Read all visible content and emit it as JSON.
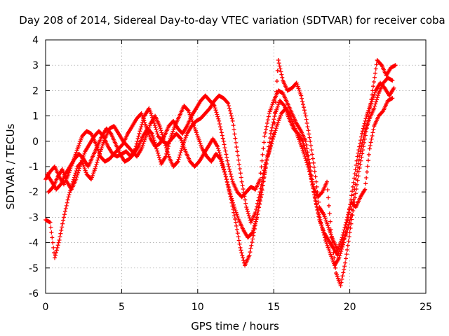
{
  "chart_data": {
    "type": "scatter",
    "title": "Day 208 of 2014, Sidereal Day-to-day VTEC variation (SDTVAR) for receiver coba",
    "xlabel": "GPS time / hours",
    "ylabel": "SDTVAR / TECUs",
    "xlim": [
      0,
      25
    ],
    "ylim": [
      -6,
      4
    ],
    "x_ticks": [
      "0",
      "5",
      "10",
      "15",
      "20",
      "25"
    ],
    "y_ticks": [
      "-6",
      "-5",
      "-4",
      "-3",
      "-2",
      "-1",
      "0",
      "1",
      "2",
      "3",
      "4"
    ],
    "grid": true,
    "marker": "+",
    "series_color": "#ff0000",
    "series": [
      {
        "points": [
          [
            0.0,
            -1.5
          ],
          [
            0.3,
            -1.2
          ],
          [
            0.6,
            -1.0
          ],
          [
            0.9,
            -1.4
          ],
          [
            1.2,
            -1.7
          ],
          [
            1.5,
            -1.3
          ],
          [
            1.8,
            -0.8
          ],
          [
            2.1,
            -0.3
          ],
          [
            2.4,
            0.2
          ],
          [
            2.7,
            0.4
          ],
          [
            3.0,
            0.3
          ],
          [
            3.3,
            -0.1
          ],
          [
            3.6,
            -0.6
          ],
          [
            3.9,
            -0.8
          ],
          [
            4.2,
            -0.7
          ],
          [
            4.5,
            -0.5
          ],
          [
            4.8,
            -0.3
          ],
          [
            5.1,
            -0.1
          ],
          [
            5.4,
            0.3
          ],
          [
            5.7,
            0.6
          ],
          [
            6.0,
            0.9
          ],
          [
            6.3,
            1.1
          ],
          [
            6.6,
            0.6
          ],
          [
            6.9,
            0.1
          ],
          [
            7.2,
            -0.2
          ],
          [
            7.5,
            -0.1
          ],
          [
            7.8,
            0.2
          ],
          [
            8.1,
            0.6
          ],
          [
            8.4,
            0.8
          ],
          [
            8.7,
            0.5
          ],
          [
            9.0,
            0.3
          ],
          [
            9.3,
            0.6
          ],
          [
            9.6,
            1.0
          ],
          [
            9.9,
            1.3
          ],
          [
            10.2,
            1.6
          ],
          [
            10.5,
            1.8
          ],
          [
            10.8,
            1.6
          ],
          [
            11.1,
            1.4
          ],
          [
            11.4,
            0.8
          ],
          [
            11.7,
            0.0
          ],
          [
            12.0,
            -0.9
          ],
          [
            12.3,
            -1.6
          ],
          [
            12.6,
            -2.0
          ],
          [
            12.9,
            -2.2
          ],
          [
            13.2,
            -2.0
          ],
          [
            13.5,
            -1.8
          ],
          [
            13.8,
            -1.9
          ],
          [
            14.1,
            -1.5
          ],
          [
            14.4,
            0.2
          ],
          [
            14.7,
            1.1
          ],
          [
            15.0,
            1.6
          ],
          [
            15.3,
            2.0
          ],
          [
            15.6,
            1.9
          ],
          [
            15.9,
            1.5
          ],
          [
            16.2,
            1.1
          ],
          [
            16.5,
            0.7
          ],
          [
            16.8,
            0.4
          ],
          [
            17.1,
            0.0
          ],
          [
            17.4,
            -1.0
          ],
          [
            17.7,
            -2.2
          ],
          [
            18.0,
            -3.1
          ],
          [
            18.3,
            -3.6
          ],
          [
            18.6,
            -3.9
          ],
          [
            18.9,
            -4.2
          ],
          [
            19.2,
            -4.5
          ],
          [
            19.5,
            -4.0
          ],
          [
            19.8,
            -3.6
          ],
          [
            20.1,
            -2.9
          ],
          [
            20.4,
            -1.5
          ],
          [
            20.7,
            -0.4
          ],
          [
            21.0,
            0.4
          ],
          [
            21.3,
            0.9
          ],
          [
            21.6,
            1.3
          ],
          [
            21.9,
            1.9
          ],
          [
            22.2,
            2.3
          ],
          [
            22.5,
            2.5
          ],
          [
            22.8,
            2.4
          ]
        ]
      },
      {
        "points": [
          [
            0.1,
            -1.3
          ],
          [
            0.4,
            -1.6
          ],
          [
            0.7,
            -1.9
          ],
          [
            1.0,
            -1.7
          ],
          [
            1.3,
            -1.3
          ],
          [
            1.6,
            -1.0
          ],
          [
            1.9,
            -0.7
          ],
          [
            2.2,
            -0.5
          ],
          [
            2.5,
            -0.7
          ],
          [
            2.8,
            -1.0
          ],
          [
            3.1,
            -0.6
          ],
          [
            3.4,
            -0.2
          ],
          [
            3.7,
            0.2
          ],
          [
            4.0,
            0.5
          ],
          [
            4.3,
            0.3
          ],
          [
            4.6,
            -0.1
          ],
          [
            4.9,
            -0.5
          ],
          [
            5.2,
            -0.8
          ],
          [
            5.5,
            -0.7
          ],
          [
            5.8,
            -0.5
          ],
          [
            6.1,
            -0.2
          ],
          [
            6.4,
            0.2
          ],
          [
            6.7,
            0.5
          ],
          [
            7.0,
            0.3
          ],
          [
            7.3,
            -0.3
          ],
          [
            7.6,
            -0.9
          ],
          [
            7.9,
            -0.6
          ],
          [
            8.2,
            0.1
          ],
          [
            8.5,
            0.6
          ],
          [
            8.8,
            1.0
          ],
          [
            9.1,
            1.4
          ],
          [
            9.4,
            1.2
          ],
          [
            9.7,
            0.7
          ],
          [
            10.0,
            0.2
          ],
          [
            10.3,
            -0.3
          ],
          [
            10.6,
            -0.6
          ],
          [
            10.9,
            -0.8
          ],
          [
            11.2,
            -0.5
          ],
          [
            11.5,
            -0.7
          ],
          [
            11.8,
            -1.3
          ],
          [
            12.1,
            -2.0
          ],
          [
            12.4,
            -2.6
          ],
          [
            12.7,
            -3.1
          ],
          [
            13.0,
            -3.5
          ],
          [
            13.3,
            -3.8
          ],
          [
            13.6,
            -3.6
          ],
          [
            13.9,
            -3.0
          ],
          [
            14.2,
            -2.1
          ],
          [
            14.5,
            -0.9
          ],
          [
            14.8,
            0.3
          ],
          [
            15.1,
            1.1
          ],
          [
            15.4,
            1.6
          ],
          [
            15.7,
            1.4
          ],
          [
            16.0,
            0.9
          ],
          [
            16.3,
            0.5
          ],
          [
            16.6,
            0.3
          ],
          [
            16.9,
            0.0
          ],
          [
            17.2,
            -0.6
          ],
          [
            17.5,
            -1.6
          ],
          [
            17.8,
            -2.5
          ],
          [
            18.1,
            -3.2
          ],
          [
            18.4,
            -3.9
          ],
          [
            18.7,
            -4.4
          ],
          [
            19.0,
            -4.9
          ],
          [
            19.3,
            -4.6
          ],
          [
            19.6,
            -4.0
          ],
          [
            19.9,
            -3.0
          ],
          [
            20.2,
            -1.8
          ],
          [
            20.5,
            -0.6
          ],
          [
            20.8,
            0.3
          ],
          [
            21.1,
            1.0
          ],
          [
            21.4,
            1.5
          ],
          [
            21.7,
            2.0
          ],
          [
            22.0,
            2.3
          ],
          [
            22.3,
            2.1
          ],
          [
            22.6,
            1.8
          ],
          [
            22.9,
            2.1
          ]
        ]
      },
      {
        "points": [
          [
            0.2,
            -2.0
          ],
          [
            0.5,
            -1.8
          ],
          [
            0.8,
            -1.4
          ],
          [
            1.1,
            -1.1
          ],
          [
            1.4,
            -1.6
          ],
          [
            1.7,
            -1.9
          ],
          [
            2.0,
            -1.5
          ],
          [
            2.3,
            -0.9
          ],
          [
            2.6,
            -0.4
          ],
          [
            2.9,
            -0.1
          ],
          [
            3.2,
            0.2
          ],
          [
            3.5,
            0.4
          ],
          [
            3.8,
            0.2
          ],
          [
            4.1,
            -0.2
          ],
          [
            4.4,
            -0.5
          ],
          [
            4.7,
            -0.6
          ],
          [
            5.0,
            -0.5
          ],
          [
            5.3,
            -0.4
          ],
          [
            5.6,
            -0.6
          ],
          [
            5.9,
            -0.3
          ],
          [
            6.2,
            0.4
          ],
          [
            6.5,
            1.0
          ],
          [
            6.8,
            1.3
          ],
          [
            7.1,
            0.8
          ],
          [
            7.4,
            0.2
          ],
          [
            7.7,
            0.0
          ],
          [
            8.0,
            -0.1
          ],
          [
            8.3,
            0.1
          ],
          [
            8.6,
            0.3
          ],
          [
            8.9,
            0.1
          ],
          [
            9.2,
            -0.4
          ],
          [
            9.5,
            -0.8
          ],
          [
            9.8,
            -1.0
          ],
          [
            10.1,
            -0.8
          ],
          [
            10.4,
            -0.5
          ],
          [
            10.7,
            -0.2
          ],
          [
            11.0,
            0.1
          ],
          [
            11.3,
            -0.2
          ],
          [
            11.6,
            -0.8
          ],
          [
            11.9,
            -1.5
          ],
          [
            12.2,
            -2.3
          ],
          [
            12.5,
            -3.2
          ],
          [
            12.8,
            -4.2
          ],
          [
            13.1,
            -4.9
          ],
          [
            13.4,
            -4.5
          ],
          [
            13.7,
            -3.6
          ],
          [
            14.0,
            -2.6
          ],
          [
            14.3,
            -1.6
          ],
          [
            14.6,
            -0.6
          ],
          [
            14.9,
            0.0
          ],
          [
            15.2,
            0.6
          ],
          [
            15.5,
            1.1
          ],
          [
            15.8,
            1.3
          ],
          [
            16.1,
            1.0
          ],
          [
            16.4,
            0.5
          ],
          [
            16.7,
            0.0
          ],
          [
            17.0,
            -0.5
          ],
          [
            17.3,
            -1.1
          ],
          [
            17.6,
            -1.8
          ],
          [
            17.9,
            -2.2
          ],
          [
            18.2,
            -2.0
          ],
          [
            18.5,
            -1.6
          ],
          [
            18.8,
            -3.8
          ],
          [
            19.1,
            -5.2
          ],
          [
            19.4,
            -5.7
          ],
          [
            19.7,
            -4.8
          ],
          [
            20.0,
            -3.6
          ],
          [
            20.3,
            -2.4
          ],
          [
            20.6,
            -1.2
          ],
          [
            20.9,
            -0.2
          ],
          [
            21.2,
            0.8
          ],
          [
            21.5,
            2.0
          ],
          [
            21.8,
            3.2
          ],
          [
            22.1,
            3.0
          ],
          [
            22.4,
            2.6
          ],
          [
            22.7,
            2.9
          ],
          [
            23.0,
            3.0
          ]
        ]
      },
      {
        "points": [
          [
            0.0,
            -3.1
          ],
          [
            0.3,
            -3.2
          ],
          [
            0.6,
            -4.6
          ],
          [
            0.9,
            -3.9
          ],
          [
            1.2,
            -3.0
          ],
          [
            1.5,
            -2.2
          ],
          [
            1.8,
            -1.6
          ],
          [
            2.1,
            -1.0
          ],
          [
            2.4,
            -0.8
          ],
          [
            2.7,
            -1.3
          ],
          [
            3.0,
            -1.5
          ],
          [
            3.3,
            -1.0
          ],
          [
            3.6,
            -0.4
          ],
          [
            3.9,
            0.1
          ],
          [
            4.2,
            0.5
          ],
          [
            4.5,
            0.6
          ],
          [
            4.8,
            0.3
          ],
          [
            5.1,
            0.0
          ],
          [
            5.4,
            -0.2
          ],
          [
            5.7,
            -0.4
          ],
          [
            6.0,
            -0.6
          ],
          [
            6.3,
            -0.3
          ],
          [
            6.6,
            0.2
          ],
          [
            6.9,
            0.7
          ],
          [
            7.2,
            1.0
          ],
          [
            7.5,
            0.6
          ],
          [
            7.8,
            0.0
          ],
          [
            8.1,
            -0.6
          ],
          [
            8.4,
            -1.0
          ],
          [
            8.7,
            -0.8
          ],
          [
            9.0,
            -0.2
          ],
          [
            9.3,
            0.3
          ],
          [
            9.6,
            0.6
          ],
          [
            9.9,
            0.8
          ],
          [
            10.2,
            0.9
          ],
          [
            10.5,
            1.1
          ],
          [
            10.8,
            1.3
          ],
          [
            11.1,
            1.6
          ],
          [
            11.4,
            1.8
          ],
          [
            11.7,
            1.7
          ],
          [
            12.0,
            1.5
          ],
          [
            12.3,
            0.8
          ],
          [
            12.6,
            -0.4
          ],
          [
            12.9,
            -1.6
          ],
          [
            13.2,
            -2.6
          ],
          [
            13.5,
            -3.2
          ],
          [
            13.8,
            -2.8
          ],
          [
            14.1,
            -2.0
          ],
          [
            14.4,
            -1.0
          ],
          [
            14.7,
            -0.4
          ],
          [
            15.0,
            0.3
          ],
          [
            15.3,
            3.2
          ],
          [
            15.6,
            2.4
          ],
          [
            15.9,
            2.0
          ],
          [
            16.2,
            2.1
          ],
          [
            16.5,
            2.3
          ],
          [
            16.8,
            1.8
          ],
          [
            17.1,
            1.0
          ],
          [
            17.4,
            0.0
          ],
          [
            17.7,
            -1.2
          ],
          [
            18.0,
            -2.6
          ],
          [
            18.3,
            -2.9
          ],
          [
            18.6,
            -3.4
          ],
          [
            18.9,
            -3.9
          ],
          [
            19.2,
            -4.3
          ],
          [
            19.5,
            -3.8
          ],
          [
            19.8,
            -3.1
          ],
          [
            20.1,
            -2.4
          ],
          [
            20.4,
            -2.6
          ],
          [
            20.7,
            -2.2
          ],
          [
            21.0,
            -1.9
          ],
          [
            21.3,
            -0.3
          ],
          [
            21.6,
            0.6
          ],
          [
            21.9,
            1.0
          ],
          [
            22.2,
            1.2
          ],
          [
            22.5,
            1.6
          ],
          [
            22.8,
            1.7
          ]
        ]
      }
    ]
  }
}
